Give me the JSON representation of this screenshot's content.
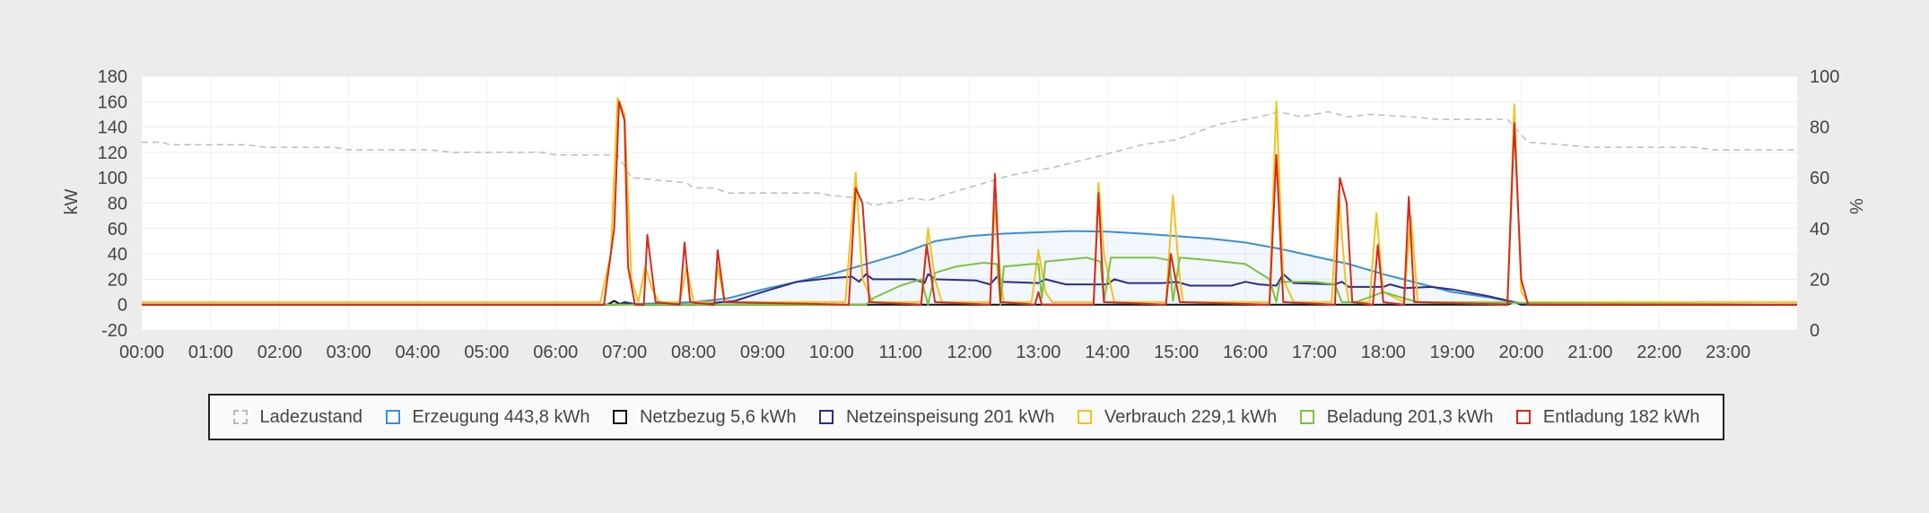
{
  "chart_data": {
    "type": "line",
    "xlabel": "",
    "ylabel": "kW",
    "y2label": "%",
    "ylim": [
      -20,
      180
    ],
    "y2lim": [
      0,
      100
    ],
    "yticks": [
      -20,
      0,
      20,
      40,
      60,
      80,
      100,
      120,
      140,
      160,
      180
    ],
    "y2ticks": [
      0,
      20,
      40,
      60,
      80,
      100
    ],
    "xlim": [
      0,
      24
    ],
    "xticks": [
      "00:00",
      "01:00",
      "02:00",
      "03:00",
      "04:00",
      "05:00",
      "06:00",
      "07:00",
      "08:00",
      "09:00",
      "10:00",
      "11:00",
      "12:00",
      "13:00",
      "14:00",
      "15:00",
      "16:00",
      "17:00",
      "18:00",
      "19:00",
      "20:00",
      "21:00",
      "22:00",
      "23:00"
    ],
    "grid": true,
    "legend_position": "bottom",
    "legend": [
      {
        "label": "Ladezustand",
        "color": "#bbbbbb",
        "style": "dashed"
      },
      {
        "label": "Erzeugung 443,8 kWh",
        "color": "#3a8fd0",
        "style": "solid"
      },
      {
        "label": "Netzbezug 5,6 kWh",
        "color": "#111111",
        "style": "solid"
      },
      {
        "label": "Netzeinspeisung 201 kWh",
        "color": "#2b2d8c",
        "style": "solid"
      },
      {
        "label": "Verbrauch 229,1 kWh",
        "color": "#f2c21b",
        "style": "solid"
      },
      {
        "label": "Beladung 201,3 kWh",
        "color": "#7cc242",
        "style": "solid"
      },
      {
        "label": "Entladung 182 kWh",
        "color": "#d42a1c",
        "style": "solid"
      }
    ],
    "series": [
      {
        "name": "Ladezustand",
        "axis": "right",
        "color": "#bbbbbb",
        "dash": true,
        "points": [
          [
            0,
            74
          ],
          [
            0.3,
            74
          ],
          [
            0.4,
            73
          ],
          [
            1.5,
            73
          ],
          [
            1.8,
            72
          ],
          [
            2.8,
            72
          ],
          [
            3,
            71
          ],
          [
            4.2,
            71
          ],
          [
            4.5,
            70
          ],
          [
            5.8,
            70
          ],
          [
            6,
            69
          ],
          [
            6.9,
            69
          ],
          [
            7.1,
            60
          ],
          [
            7.5,
            59
          ],
          [
            7.9,
            58
          ],
          [
            8,
            56
          ],
          [
            8.3,
            56
          ],
          [
            8.5,
            54
          ],
          [
            9.8,
            54
          ],
          [
            10,
            53
          ],
          [
            10.4,
            52
          ],
          [
            10.6,
            49
          ],
          [
            11.2,
            52
          ],
          [
            11.4,
            51
          ],
          [
            11.6,
            53
          ],
          [
            12.1,
            57
          ],
          [
            12.6,
            61
          ],
          [
            13.2,
            64
          ],
          [
            13.8,
            68
          ],
          [
            14.5,
            73
          ],
          [
            15,
            75
          ],
          [
            15.6,
            81
          ],
          [
            16.2,
            84
          ],
          [
            16.5,
            86
          ],
          [
            16.8,
            84
          ],
          [
            17.2,
            86
          ],
          [
            17.5,
            84
          ],
          [
            17.8,
            85
          ],
          [
            18.4,
            84
          ],
          [
            18.8,
            83
          ],
          [
            19.8,
            83
          ],
          [
            20.1,
            74
          ],
          [
            20.6,
            73
          ],
          [
            21,
            72
          ],
          [
            22.5,
            72
          ],
          [
            22.8,
            71
          ],
          [
            24,
            71
          ]
        ]
      },
      {
        "name": "Erzeugung",
        "axis": "left",
        "color": "#3a8fd0",
        "fill": true,
        "points": [
          [
            0,
            0
          ],
          [
            6.7,
            0
          ],
          [
            7.5,
            1
          ],
          [
            8,
            2
          ],
          [
            8.5,
            5
          ],
          [
            9,
            12
          ],
          [
            9.5,
            18
          ],
          [
            10,
            24
          ],
          [
            10.5,
            32
          ],
          [
            11,
            40
          ],
          [
            11.5,
            50
          ],
          [
            12,
            54
          ],
          [
            12.5,
            56
          ],
          [
            13,
            57
          ],
          [
            13.5,
            58
          ],
          [
            14,
            57.5
          ],
          [
            14.5,
            56
          ],
          [
            15,
            54
          ],
          [
            15.5,
            52
          ],
          [
            16,
            49
          ],
          [
            16.5,
            44
          ],
          [
            17,
            38
          ],
          [
            17.5,
            32
          ],
          [
            18,
            24
          ],
          [
            18.5,
            17
          ],
          [
            19,
            10
          ],
          [
            19.5,
            6
          ],
          [
            20,
            1
          ],
          [
            20.3,
            0
          ],
          [
            24,
            0
          ]
        ]
      },
      {
        "name": "Netzbezug",
        "axis": "left",
        "color": "#111111",
        "points": [
          [
            0,
            0
          ],
          [
            6.75,
            0
          ],
          [
            6.85,
            3
          ],
          [
            6.95,
            0
          ],
          [
            7.1,
            1
          ],
          [
            7.2,
            0
          ],
          [
            19.8,
            0
          ],
          [
            19.9,
            2
          ],
          [
            20.0,
            0
          ],
          [
            24,
            0
          ]
        ]
      },
      {
        "name": "Netzeinspeisung",
        "axis": "left",
        "color": "#2b2d8c",
        "points": [
          [
            0,
            0
          ],
          [
            6.9,
            0
          ],
          [
            7.0,
            2
          ],
          [
            7.2,
            0
          ],
          [
            8,
            0
          ],
          [
            8.6,
            3
          ],
          [
            9,
            10
          ],
          [
            9.5,
            18
          ],
          [
            10,
            21
          ],
          [
            10.3,
            22
          ],
          [
            10.4,
            18
          ],
          [
            10.5,
            24
          ],
          [
            10.6,
            20
          ],
          [
            11.2,
            20
          ],
          [
            11.35,
            17
          ],
          [
            11.4,
            24
          ],
          [
            11.5,
            20
          ],
          [
            12.1,
            19
          ],
          [
            12.3,
            16
          ],
          [
            12.4,
            22
          ],
          [
            12.5,
            18
          ],
          [
            13.0,
            17
          ],
          [
            13.1,
            20
          ],
          [
            13.4,
            16
          ],
          [
            14.0,
            16
          ],
          [
            14.1,
            20
          ],
          [
            14.3,
            17
          ],
          [
            14.8,
            17
          ],
          [
            15.0,
            18
          ],
          [
            15.2,
            15
          ],
          [
            15.8,
            15
          ],
          [
            16.0,
            18
          ],
          [
            16.2,
            16
          ],
          [
            16.45,
            15
          ],
          [
            16.55,
            24
          ],
          [
            16.7,
            17
          ],
          [
            17.3,
            16
          ],
          [
            17.4,
            18
          ],
          [
            17.5,
            14
          ],
          [
            18.0,
            14
          ],
          [
            18.1,
            16
          ],
          [
            18.3,
            13
          ],
          [
            18.7,
            14
          ],
          [
            19,
            12
          ],
          [
            19.5,
            7
          ],
          [
            19.9,
            2
          ],
          [
            20.1,
            0
          ],
          [
            24,
            0
          ]
        ]
      },
      {
        "name": "Verbrauch",
        "axis": "left",
        "color": "#f2c21b",
        "points": [
          [
            0,
            2
          ],
          [
            6.65,
            2
          ],
          [
            6.8,
            40
          ],
          [
            6.9,
            163
          ],
          [
            7.0,
            150
          ],
          [
            7.1,
            20
          ],
          [
            7.2,
            2
          ],
          [
            7.3,
            30
          ],
          [
            7.4,
            12
          ],
          [
            7.5,
            2
          ],
          [
            7.8,
            2
          ],
          [
            7.9,
            30
          ],
          [
            8.0,
            2
          ],
          [
            8.3,
            2
          ],
          [
            8.35,
            30
          ],
          [
            8.45,
            2
          ],
          [
            10.2,
            2
          ],
          [
            10.35,
            104
          ],
          [
            10.45,
            20
          ],
          [
            10.6,
            2
          ],
          [
            11.3,
            2
          ],
          [
            11.4,
            60
          ],
          [
            11.5,
            20
          ],
          [
            11.6,
            2
          ],
          [
            12.3,
            2
          ],
          [
            12.37,
            80
          ],
          [
            12.45,
            20
          ],
          [
            12.5,
            2
          ],
          [
            12.9,
            2
          ],
          [
            13.0,
            43
          ],
          [
            13.1,
            10
          ],
          [
            13.2,
            2
          ],
          [
            13.8,
            2
          ],
          [
            13.87,
            96
          ],
          [
            13.95,
            40
          ],
          [
            14.1,
            2
          ],
          [
            14.85,
            2
          ],
          [
            14.95,
            86
          ],
          [
            15.05,
            20
          ],
          [
            15.1,
            2
          ],
          [
            16.35,
            2
          ],
          [
            16.45,
            160
          ],
          [
            16.55,
            20
          ],
          [
            16.7,
            2
          ],
          [
            17.25,
            2
          ],
          [
            17.35,
            90
          ],
          [
            17.45,
            20
          ],
          [
            17.5,
            2
          ],
          [
            17.8,
            2
          ],
          [
            17.9,
            72
          ],
          [
            18.0,
            10
          ],
          [
            18.3,
            2
          ],
          [
            18.4,
            70
          ],
          [
            18.5,
            2
          ],
          [
            19.8,
            2
          ],
          [
            19.9,
            158
          ],
          [
            20.0,
            10
          ],
          [
            20.1,
            2
          ],
          [
            24,
            2
          ]
        ]
      },
      {
        "name": "Beladung",
        "axis": "left",
        "color": "#7cc242",
        "points": [
          [
            0,
            0
          ],
          [
            10.5,
            0
          ],
          [
            10.6,
            5
          ],
          [
            11.0,
            15
          ],
          [
            11.3,
            20
          ],
          [
            11.4,
            0
          ],
          [
            11.5,
            25
          ],
          [
            11.8,
            30
          ],
          [
            12.2,
            33
          ],
          [
            12.4,
            32
          ],
          [
            12.45,
            0
          ],
          [
            12.5,
            30
          ],
          [
            12.9,
            32
          ],
          [
            13.0,
            32
          ],
          [
            13.05,
            5
          ],
          [
            13.1,
            34
          ],
          [
            13.7,
            37
          ],
          [
            13.9,
            34
          ],
          [
            13.95,
            2
          ],
          [
            14.05,
            37
          ],
          [
            14.7,
            37
          ],
          [
            14.9,
            35
          ],
          [
            14.95,
            3
          ],
          [
            15.05,
            37
          ],
          [
            15.5,
            35
          ],
          [
            16.0,
            32
          ],
          [
            16.35,
            20
          ],
          [
            16.45,
            2
          ],
          [
            16.5,
            18
          ],
          [
            17.0,
            18
          ],
          [
            17.3,
            16
          ],
          [
            17.4,
            2
          ],
          [
            17.6,
            2
          ],
          [
            18.0,
            10
          ],
          [
            18.3,
            5
          ],
          [
            18.5,
            2
          ],
          [
            24,
            0
          ]
        ]
      },
      {
        "name": "Entladung",
        "axis": "left",
        "color": "#d42a1c",
        "points": [
          [
            0,
            0
          ],
          [
            6.7,
            0
          ],
          [
            6.85,
            60
          ],
          [
            6.92,
            160
          ],
          [
            7.0,
            145
          ],
          [
            7.05,
            30
          ],
          [
            7.15,
            0
          ],
          [
            7.28,
            0
          ],
          [
            7.33,
            55
          ],
          [
            7.45,
            2
          ],
          [
            7.8,
            0
          ],
          [
            7.87,
            49
          ],
          [
            7.95,
            2
          ],
          [
            8.3,
            0
          ],
          [
            8.35,
            43
          ],
          [
            8.45,
            2
          ],
          [
            10.25,
            0
          ],
          [
            10.35,
            92
          ],
          [
            10.45,
            80
          ],
          [
            10.55,
            2
          ],
          [
            11.3,
            0
          ],
          [
            11.38,
            47
          ],
          [
            11.5,
            2
          ],
          [
            12.3,
            0
          ],
          [
            12.37,
            103
          ],
          [
            12.45,
            2
          ],
          [
            12.95,
            0
          ],
          [
            13.0,
            10
          ],
          [
            13.05,
            0
          ],
          [
            13.8,
            0
          ],
          [
            13.87,
            88
          ],
          [
            13.95,
            2
          ],
          [
            14.85,
            0
          ],
          [
            14.92,
            40
          ],
          [
            15.05,
            2
          ],
          [
            16.35,
            0
          ],
          [
            16.45,
            118
          ],
          [
            16.55,
            2
          ],
          [
            17.3,
            0
          ],
          [
            17.37,
            100
          ],
          [
            17.47,
            80
          ],
          [
            17.55,
            2
          ],
          [
            17.85,
            0
          ],
          [
            17.92,
            47
          ],
          [
            18.0,
            2
          ],
          [
            18.3,
            0
          ],
          [
            18.37,
            85
          ],
          [
            18.45,
            2
          ],
          [
            19.8,
            0
          ],
          [
            19.9,
            143
          ],
          [
            20.0,
            20
          ],
          [
            20.1,
            0
          ],
          [
            24,
            0
          ]
        ]
      }
    ]
  }
}
